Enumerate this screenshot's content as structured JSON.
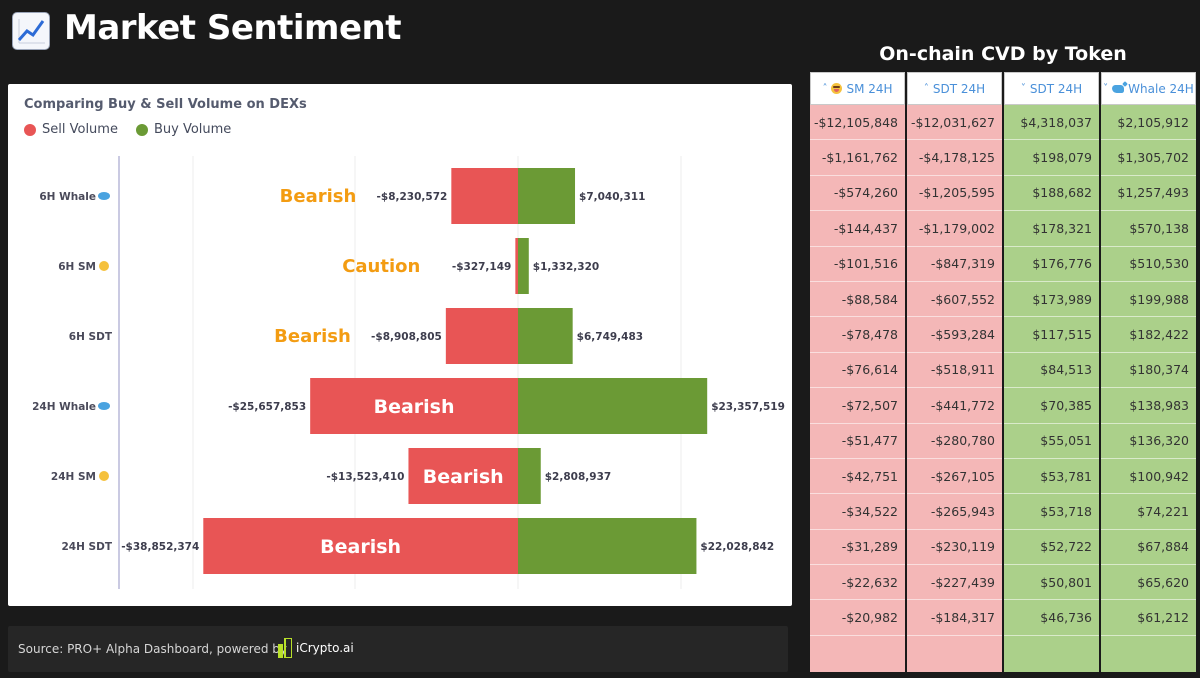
{
  "header": {
    "title": "Market Sentiment",
    "icon": "chart-increasing-icon"
  },
  "chart_data": {
    "type": "bar",
    "orientation": "horizontal-diverging",
    "subtitle": "Comparing Buy & Sell Volume on DEXs",
    "legend": [
      {
        "name": "Sell Volume",
        "color": "#e85555"
      },
      {
        "name": "Buy Volume",
        "color": "#6b9a35"
      }
    ],
    "grid": true,
    "xlim": [
      -40000000,
      40000000
    ],
    "categories": [
      {
        "label": "6H Whale",
        "emoji": "whale"
      },
      {
        "label": "6H SM",
        "emoji": "face"
      },
      {
        "label": "6H SDT",
        "emoji": ""
      },
      {
        "label": "24H Whale",
        "emoji": "whale"
      },
      {
        "label": "24H SM",
        "emoji": "face"
      },
      {
        "label": "24H SDT",
        "emoji": ""
      }
    ],
    "series": [
      {
        "name": "Sell Volume",
        "values": [
          -8230572,
          -327149,
          -8908805,
          -25657853,
          -13523410,
          -38852374
        ],
        "labels": [
          "-$8,230,572",
          "-$327,149",
          "-$8,908,805",
          "-$25,657,853",
          "-$13,523,410",
          "-$38,852,374"
        ]
      },
      {
        "name": "Buy Volume",
        "values": [
          7040311,
          1332320,
          6749483,
          23357519,
          2808937,
          22028842
        ],
        "labels": [
          "$7,040,311",
          "$1,332,320",
          "$6,749,483",
          "$23,357,519",
          "$2,808,937",
          "$22,028,842"
        ]
      }
    ],
    "annotations": [
      {
        "text": "Bearish",
        "style": "orange-outside"
      },
      {
        "text": "Caution",
        "style": "orange-outside"
      },
      {
        "text": "Bearish",
        "style": "orange-outside"
      },
      {
        "text": "Bearish",
        "style": "white-inside"
      },
      {
        "text": "Bearish",
        "style": "white-inside"
      },
      {
        "text": "Bearish",
        "style": "white-inside"
      }
    ],
    "colors": {
      "sell": "#e85555",
      "buy": "#6b9a35",
      "annotation_orange": "#f39c12"
    }
  },
  "footer": {
    "source": "Source: PRO+ Alpha Dashboard, powered by",
    "brand": "iCrypto.ai"
  },
  "cvd": {
    "title": "On-chain CVD by Token",
    "columns": [
      {
        "header": "SM 24H",
        "sort": "asc",
        "emoji": "face",
        "tone": "red",
        "values": [
          "-$12,105,848",
          "-$1,161,762",
          "-$574,260",
          "-$144,437",
          "-$101,516",
          "-$88,584",
          "-$78,478",
          "-$76,614",
          "-$72,507",
          "-$51,477",
          "-$42,751",
          "-$34,522",
          "-$31,289",
          "-$22,632",
          "-$20,982"
        ]
      },
      {
        "header": "SDT 24H",
        "sort": "asc",
        "emoji": "",
        "tone": "red",
        "values": [
          "-$12,031,627",
          "-$4,178,125",
          "-$1,205,595",
          "-$1,179,002",
          "-$847,319",
          "-$607,552",
          "-$593,284",
          "-$518,911",
          "-$441,772",
          "-$280,780",
          "-$267,105",
          "-$265,943",
          "-$230,119",
          "-$227,439",
          "-$184,317"
        ]
      },
      {
        "header": "SDT 24H",
        "sort": "desc",
        "emoji": "",
        "tone": "green",
        "values": [
          "$4,318,037",
          "$198,079",
          "$188,682",
          "$178,321",
          "$176,776",
          "$173,989",
          "$117,515",
          "$84,513",
          "$70,385",
          "$55,051",
          "$53,781",
          "$53,718",
          "$52,722",
          "$50,801",
          "$46,736"
        ]
      },
      {
        "header": "Whale 24H",
        "sort": "desc",
        "emoji": "whale",
        "tone": "green",
        "values": [
          "$2,105,912",
          "$1,305,702",
          "$1,257,493",
          "$570,138",
          "$510,530",
          "$199,988",
          "$182,422",
          "$180,374",
          "$138,983",
          "$136,320",
          "$100,942",
          "$74,221",
          "$67,884",
          "$65,620",
          "$61,212"
        ]
      }
    ]
  }
}
